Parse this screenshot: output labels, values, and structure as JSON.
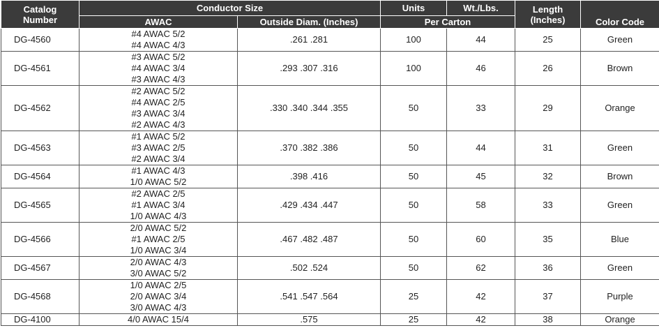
{
  "header": {
    "catalog": [
      "Catalog",
      "Number"
    ],
    "conductor": "Conductor Size",
    "units": "Units",
    "weight": "Wt./Lbs.",
    "length": [
      "Length",
      "(Inches)"
    ],
    "color": "Color Code",
    "awac": "AWAC",
    "od": "Outside Diam. (Inches)",
    "per_carton": "Per Carton"
  },
  "rows": [
    {
      "catalog": "DG-4560",
      "awac": [
        "#4 AWAC 5/2",
        "#4 AWAC 4/3"
      ],
      "od": ".261 .281",
      "units": 100,
      "weight": 44,
      "length": 25,
      "color": "Green"
    },
    {
      "catalog": "DG-4561",
      "awac": [
        "#3 AWAC 5/2",
        "#4 AWAC 3/4",
        "#3 AWAC 4/3"
      ],
      "od": ".293 .307 .316",
      "units": 100,
      "weight": 46,
      "length": 26,
      "color": "Brown"
    },
    {
      "catalog": "DG-4562",
      "awac": [
        "#2 AWAC 5/2",
        "#4 AWAC 2/5",
        "#3 AWAC 3/4",
        "#2 AWAC 4/3"
      ],
      "od": ".330 .340 .344 .355",
      "units": 50,
      "weight": 33,
      "length": 29,
      "color": "Orange"
    },
    {
      "catalog": "DG-4563",
      "awac": [
        "#1 AWAC 5/2",
        "#3 AWAC 2/5",
        "#2 AWAC 3/4"
      ],
      "od": ".370 .382 .386",
      "units": 50,
      "weight": 44,
      "length": 31,
      "color": "Green"
    },
    {
      "catalog": "DG-4564",
      "awac": [
        "#1 AWAC 4/3",
        "1/0 AWAC 5/2"
      ],
      "od": ".398 .416",
      "units": 50,
      "weight": 45,
      "length": 32,
      "color": "Brown"
    },
    {
      "catalog": "DG-4565",
      "awac": [
        "#2 AWAC 2/5",
        "#1 AWAC 3/4",
        "1/0 AWAC 4/3"
      ],
      "od": ".429 .434 .447",
      "units": 50,
      "weight": 58,
      "length": 33,
      "color": "Green"
    },
    {
      "catalog": "DG-4566",
      "awac": [
        "2/0 AWAC 5/2",
        "#1 AWAC 2/5",
        "1/0 AWAC 3/4"
      ],
      "od": ".467 .482 .487",
      "units": 50,
      "weight": 60,
      "length": 35,
      "color": "Blue"
    },
    {
      "catalog": "DG-4567",
      "awac": [
        "2/0 AWAC 4/3",
        "3/0 AWAC 5/2"
      ],
      "od": ".502 .524",
      "units": 50,
      "weight": 62,
      "length": 36,
      "color": "Green"
    },
    {
      "catalog": "DG-4568",
      "awac": [
        "1/0 AWAC 2/5",
        "2/0 AWAC 3/4",
        "3/0 AWAC 4/3"
      ],
      "od": ".541 .547 .564",
      "units": 25,
      "weight": 42,
      "length": 37,
      "color": "Purple"
    },
    {
      "catalog": "DG-4100",
      "awac": [
        "4/0 AWAC 15/4"
      ],
      "od": ".575",
      "units": 25,
      "weight": 42,
      "length": 38,
      "color": "Orange"
    }
  ]
}
